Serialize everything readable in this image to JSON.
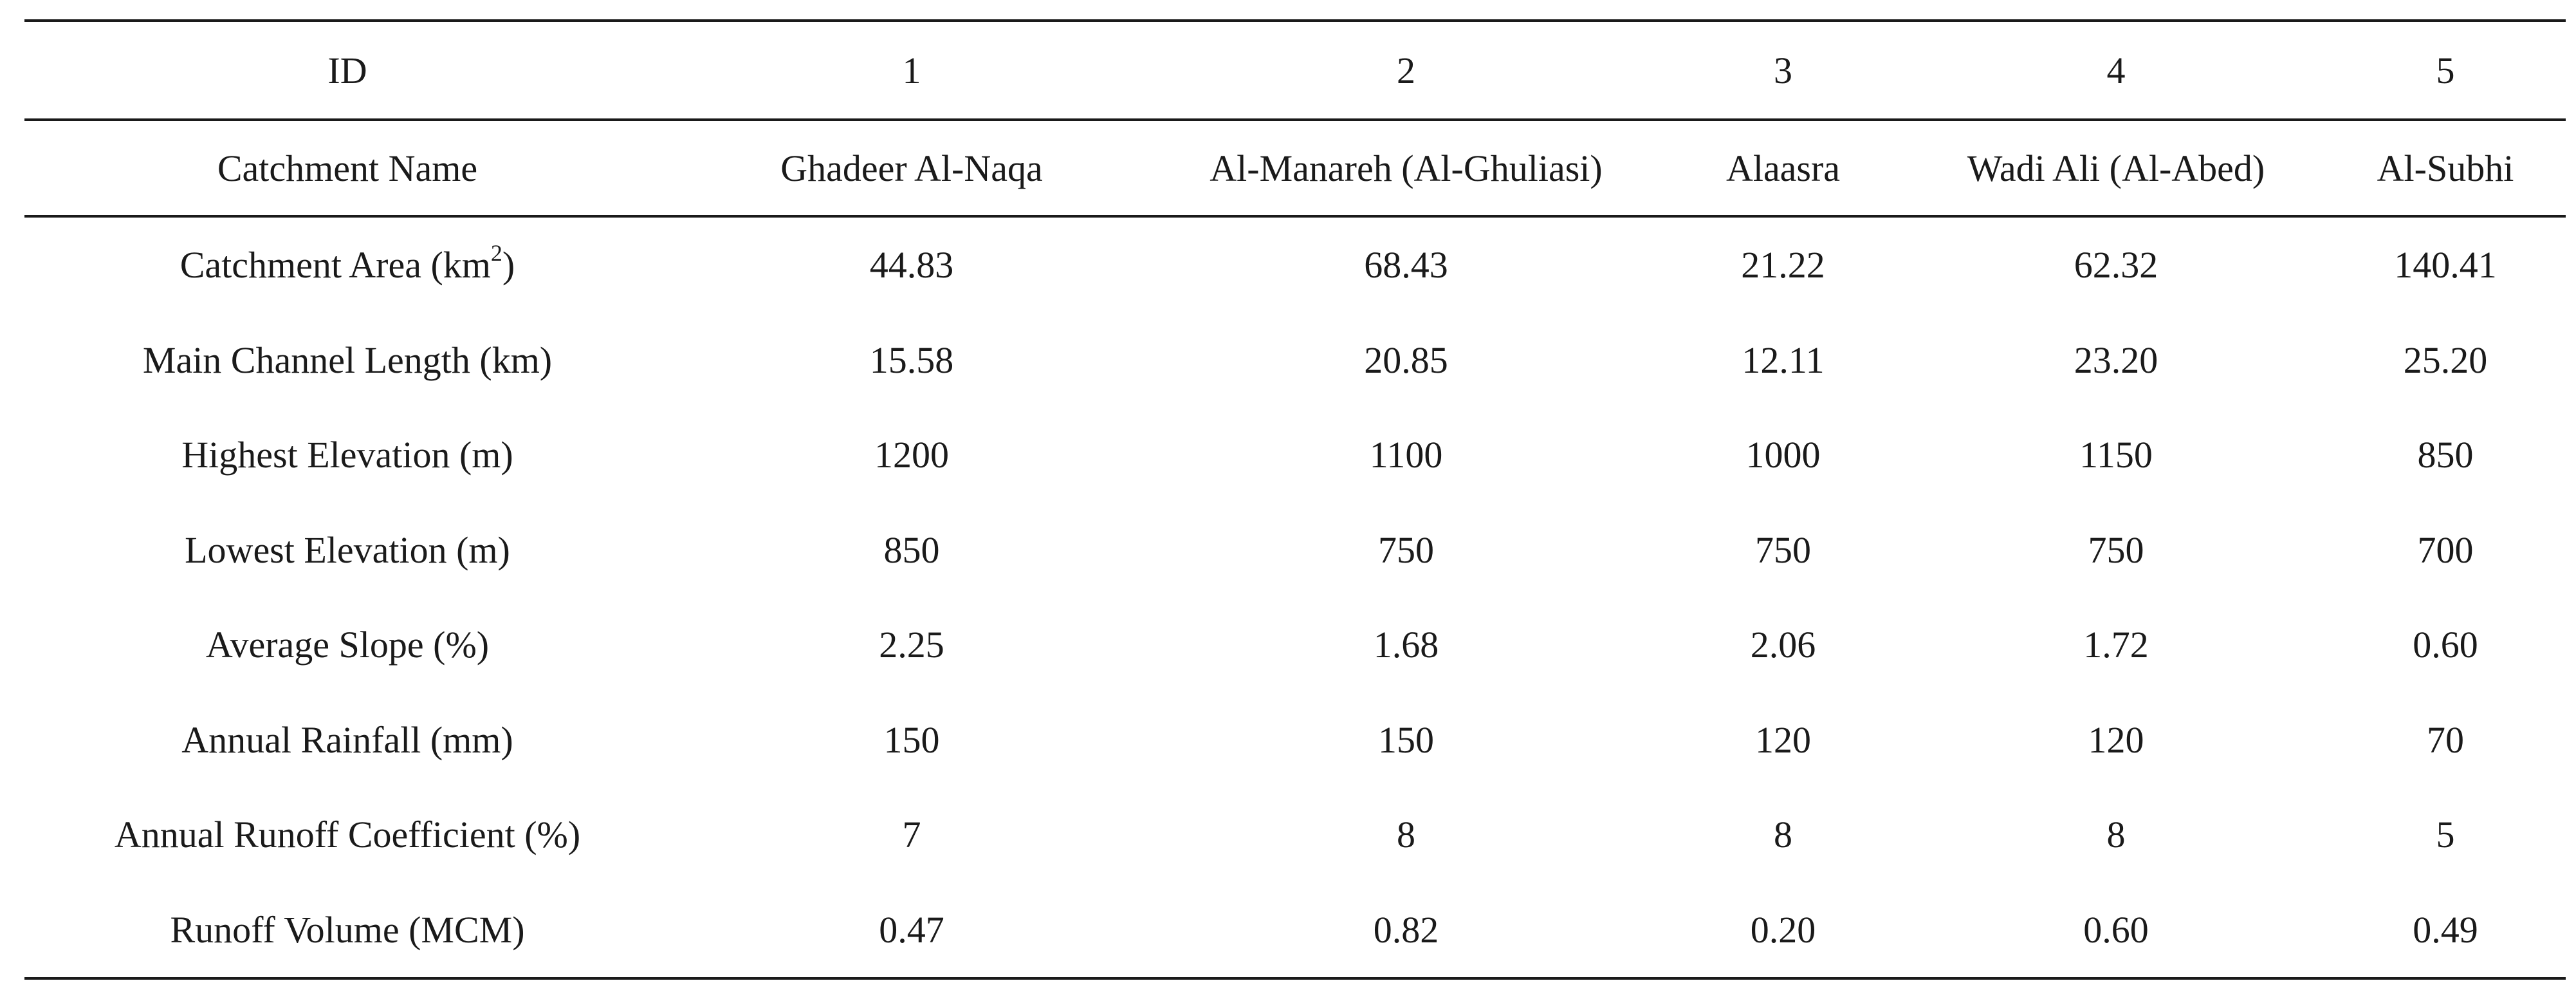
{
  "table": {
    "header": {
      "id_label": "ID",
      "ids": [
        "1",
        "2",
        "3",
        "4",
        "5"
      ],
      "name_label": "Catchment Name",
      "names": [
        "Ghadeer Al-Naqa",
        "Al-Manareh (Al-Ghuliasi)",
        "Alaasra",
        "Wadi Ali (Al-Abed)",
        "Al-Subhi"
      ]
    },
    "rows": [
      {
        "label_main": "Catchment Area (km",
        "label_sup": "2",
        "label_tail": ")",
        "values": [
          "44.83",
          "68.43",
          "21.22",
          "62.32",
          "140.41"
        ]
      },
      {
        "label": "Main Channel Length (km)",
        "values": [
          "15.58",
          "20.85",
          "12.11",
          "23.20",
          "25.20"
        ]
      },
      {
        "label": "Highest Elevation (m)",
        "values": [
          "1200",
          "1100",
          "1000",
          "1150",
          "850"
        ]
      },
      {
        "label": "Lowest Elevation (m)",
        "values": [
          "850",
          "750",
          "750",
          "750",
          "700"
        ]
      },
      {
        "label": "Average Slope (%)",
        "values": [
          "2.25",
          "1.68",
          "2.06",
          "1.72",
          "0.60"
        ]
      },
      {
        "label": "Annual Rainfall (mm)",
        "values": [
          "150",
          "150",
          "120",
          "120",
          "70"
        ]
      },
      {
        "label": "Annual Runoff Coefficient (%)",
        "values": [
          "7",
          "8",
          "8",
          "8",
          "5"
        ]
      },
      {
        "label": "Runoff Volume (MCM)",
        "values": [
          "0.47",
          "0.82",
          "0.20",
          "0.60",
          "0.49"
        ]
      }
    ]
  }
}
